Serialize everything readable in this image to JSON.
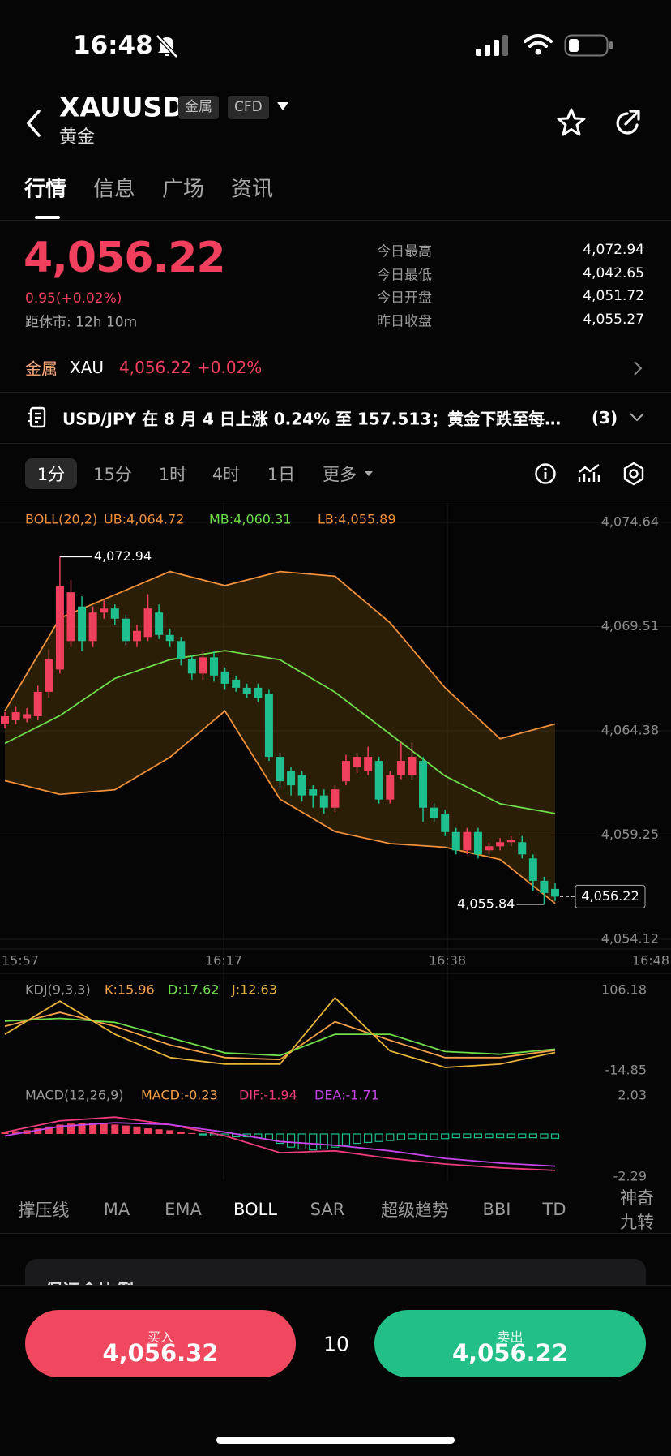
{
  "status_bar": {
    "time": "16:48"
  },
  "header": {
    "symbol": "XAUUSD",
    "tags": [
      "金属",
      "CFD"
    ],
    "name": "黄金"
  },
  "tabs": [
    "行情",
    "信息",
    "广场",
    "资讯"
  ],
  "quote": {
    "price": "4,056.22",
    "change": "0.95(+0.02%)",
    "session": "距休市: 12h 10m",
    "stats": [
      {
        "label": "今日最高",
        "value": "4,072.94"
      },
      {
        "label": "今日最低",
        "value": "4,042.65"
      },
      {
        "label": "今日开盘",
        "value": "4,051.72"
      },
      {
        "label": "昨日收盘",
        "value": "4,055.27"
      }
    ]
  },
  "sector": {
    "label": "金属",
    "code": "XAU",
    "price": "4,056.22",
    "change": "+0.02%"
  },
  "news": {
    "text": "USD/JPY 在 8 月 4 日上涨 0.24% 至 157.513；黄金下跌至每…",
    "count": "(3)"
  },
  "timeframes": [
    "1分",
    "15分",
    "1时",
    "4时",
    "1日",
    "更多"
  ],
  "chart": {
    "type": "candlestick",
    "up_color": "#f0405e",
    "down_color": "#1fbf8f",
    "grid": true,
    "ylim": [
      4054.12,
      4074.64
    ],
    "yticks": [
      {
        "value": 4074.64,
        "label": "4,074.64"
      },
      {
        "value": 4069.51,
        "label": "4,069.51"
      },
      {
        "value": 4064.38,
        "label": "4,064.38"
      },
      {
        "value": 4059.25,
        "label": "4,059.25"
      },
      {
        "value": 4054.12,
        "label": "4,054.12"
      }
    ],
    "x_labels": [
      "15:57",
      "16:17",
      "16:38",
      "16:48"
    ],
    "candles": {
      "open": [
        4064.7,
        4064.9,
        4065.0,
        4065.1,
        4066.3,
        4067.4,
        4068.8,
        4070.5,
        4068.8,
        4070.2,
        4070.4,
        4069.9,
        4068.8,
        4069.0,
        4070.2,
        4069.1,
        4068.8,
        4067.9,
        4067.2,
        4068.0,
        4067.3,
        4066.9,
        4066.5,
        4066.5,
        4066.2,
        4063.1,
        4062.4,
        4062.2,
        4061.5,
        4061.2,
        4060.6,
        4061.9,
        4062.6,
        4062.4,
        4062.9,
        4061.0,
        4062.2,
        4062.2,
        4062.9,
        4060.6,
        4060.3,
        4059.4,
        4058.5,
        4059.4,
        4058.5,
        4058.7,
        4058.9,
        4058.9,
        4058.1,
        4057.0,
        4056.6
      ],
      "close": [
        4065.1,
        4065.3,
        4065.2,
        4066.3,
        4067.9,
        4071.5,
        4071.2,
        4068.8,
        4070.2,
        4070.4,
        4069.9,
        4068.8,
        4069.3,
        4070.4,
        4069.1,
        4068.8,
        4067.9,
        4067.2,
        4068.0,
        4067.1,
        4066.7,
        4066.5,
        4066.2,
        4066.0,
        4063.1,
        4061.9,
        4061.7,
        4061.2,
        4061.2,
        4060.6,
        4061.5,
        4062.9,
        4063.1,
        4063.1,
        4061.0,
        4062.2,
        4062.9,
        4063.1,
        4060.6,
        4060.1,
        4059.4,
        4058.5,
        4059.4,
        4058.3,
        4058.7,
        4058.9,
        4059.0,
        4058.3,
        4057.0,
        4056.4,
        4056.22
      ],
      "high": [
        4065.3,
        4065.6,
        4065.5,
        4066.6,
        4068.4,
        4072.94,
        4071.8,
        4071.0,
        4070.5,
        4070.8,
        4070.6,
        4070.1,
        4069.6,
        4071.1,
        4070.6,
        4069.4,
        4069.0,
        4068.1,
        4068.3,
        4068.3,
        4067.5,
        4067.1,
        4066.7,
        4066.7,
        4066.4,
        4063.3,
        4062.6,
        4062.4,
        4061.7,
        4061.5,
        4061.7,
        4063.2,
        4063.3,
        4063.6,
        4063.1,
        4062.4,
        4063.8,
        4063.8,
        4063.1,
        4060.8,
        4060.5,
        4059.6,
        4059.6,
        4059.6,
        4058.9,
        4059.1,
        4059.2,
        4059.2,
        4058.3,
        4057.2,
        4056.9
      ],
      "low": [
        4064.5,
        4064.7,
        4064.8,
        4064.9,
        4066.0,
        4067.2,
        4068.5,
        4068.3,
        4068.5,
        4069.9,
        4069.6,
        4068.6,
        4068.5,
        4068.8,
        4068.9,
        4068.5,
        4067.6,
        4066.9,
        4066.9,
        4066.8,
        4066.4,
        4066.3,
        4066.0,
        4065.8,
        4062.9,
        4061.6,
        4061.2,
        4060.9,
        4060.6,
        4060.3,
        4060.4,
        4061.7,
        4062.3,
        4062.2,
        4060.8,
        4060.8,
        4062.0,
        4062.0,
        4059.9,
        4059.9,
        4059.2,
        4058.3,
        4058.3,
        4058.1,
        4058.3,
        4058.5,
        4058.7,
        4058.1,
        4056.5,
        4055.84,
        4056.0
      ]
    },
    "high_marker": {
      "value": 4072.94,
      "label": "4,072.94"
    },
    "low_marker": {
      "value": 4055.84,
      "label": "4,055.84"
    },
    "last_price": {
      "value": 4056.22,
      "label": "4,056.22"
    },
    "boll": {
      "label": "BOLL(20,2)",
      "band_color": "#5a3d0c",
      "x": [
        0,
        5,
        10,
        15,
        20,
        25,
        30,
        35,
        40,
        45,
        50
      ],
      "series": [
        {
          "name": "UB:4,064.72",
          "color": "#f0903a",
          "values": [
            4065.36,
            4069.93,
            4071.08,
            4072.22,
            4071.53,
            4072.22,
            4071.99,
            4069.7,
            4066.5,
            4063.99,
            4064.72
          ]
        },
        {
          "name": "MB:4,060.31",
          "color": "#6fdc4a",
          "values": [
            4063.76,
            4065.13,
            4066.96,
            4067.88,
            4068.33,
            4067.88,
            4066.28,
            4064.22,
            4062.16,
            4060.79,
            4060.31
          ]
        },
        {
          "name": "LB:4,055.89",
          "color": "#f0903a",
          "values": [
            4061.93,
            4061.25,
            4061.48,
            4063.08,
            4065.36,
            4061.02,
            4059.42,
            4058.83,
            4058.65,
            4058.05,
            4055.89
          ]
        }
      ]
    },
    "kdj": {
      "label": "KDJ(9,3,3)",
      "ylim": [
        -14.85,
        106.18
      ],
      "yticks": [
        106.18,
        -14.85
      ],
      "x": [
        0,
        5,
        10,
        15,
        20,
        25,
        30,
        35,
        40,
        45,
        50
      ],
      "series": [
        {
          "name": "K:15.96",
          "color": "#f5a04a",
          "values": [
            52,
            73,
            52,
            24,
            5,
            2,
            59,
            31,
            5,
            5,
            15.96
          ]
        },
        {
          "name": "D:17.62",
          "color": "#6fdc4a",
          "values": [
            60,
            64,
            58,
            35,
            12,
            8,
            40,
            40,
            14,
            10,
            17.62
          ]
        },
        {
          "name": "J:12.63",
          "color": "#e8b53a",
          "values": [
            40,
            90,
            40,
            5,
            -5,
            -5,
            95,
            15,
            -10,
            -5,
            12.63
          ]
        }
      ]
    },
    "macd": {
      "label": "MACD(12,26,9)",
      "ylim": [
        -2.29,
        2.03
      ],
      "yticks": [
        2.03,
        -2.29
      ],
      "histogram": {
        "name": "MACD:-0.23",
        "color": "#f5a04a",
        "values": [
          0.1,
          0.15,
          0.2,
          0.3,
          0.4,
          0.5,
          0.55,
          0.6,
          0.6,
          0.55,
          0.5,
          0.45,
          0.4,
          0.3,
          0.25,
          0.2,
          0.1,
          0.05,
          -0.05,
          -0.1,
          -0.1,
          -0.15,
          -0.15,
          -0.2,
          -0.3,
          -0.5,
          -0.7,
          -0.8,
          -0.85,
          -0.8,
          -0.7,
          -0.6,
          -0.5,
          -0.45,
          -0.4,
          -0.35,
          -0.3,
          -0.25,
          -0.3,
          -0.3,
          -0.25,
          -0.2,
          -0.2,
          -0.2,
          -0.2,
          -0.2,
          -0.2,
          -0.2,
          -0.2,
          -0.22,
          -0.23
        ]
      },
      "x": [
        0,
        5,
        10,
        15,
        20,
        25,
        30,
        35,
        40,
        45,
        50
      ],
      "series": [
        {
          "name": "DIF:-1.94",
          "color": "#ec3b7c",
          "values": [
            0.1,
            0.7,
            0.9,
            0.5,
            -0.1,
            -1.0,
            -0.9,
            -1.3,
            -1.6,
            -1.8,
            -1.94
          ]
        },
        {
          "name": "DEA:-1.71",
          "color": "#c545e8",
          "values": [
            -0.1,
            0.4,
            0.6,
            0.5,
            0.1,
            -0.4,
            -0.6,
            -0.9,
            -1.3,
            -1.55,
            -1.71
          ]
        }
      ]
    }
  },
  "indicator_tabs": [
    "撑压线",
    "MA",
    "EMA",
    "BOLL",
    "SAR",
    "超级趋势",
    "BBI",
    "TD",
    "神奇九转"
  ],
  "card": {
    "title": "保证金比例"
  },
  "trade": {
    "buy_label": "买入",
    "buy_price": "4,056.32",
    "quantity": "10",
    "sell_label": "卖出",
    "sell_price": "4,056.22"
  }
}
